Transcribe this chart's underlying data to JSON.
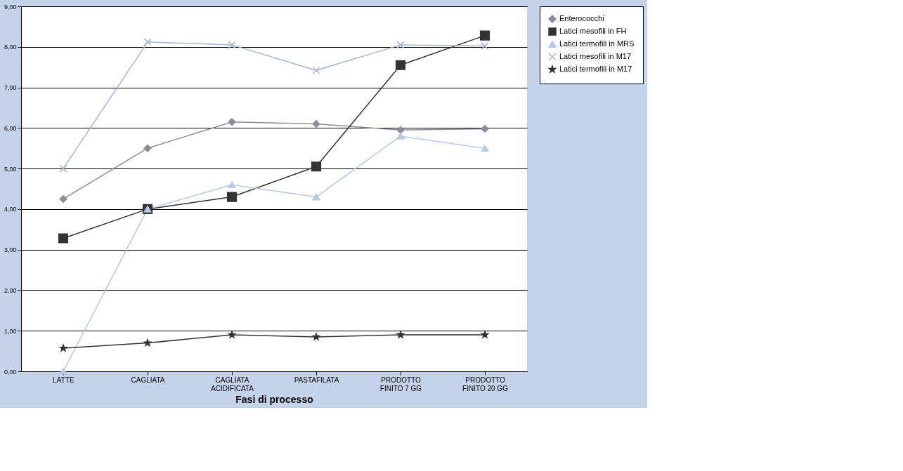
{
  "chart_data": {
    "type": "line",
    "xlabel": "Fasi di processo",
    "categories": [
      "LATTE",
      "CAGLIATA",
      "CAGLIATA\nACIDIFICATA",
      "PASTAFILATA",
      "PRODOTTO\nFINITO 7 GG",
      "PRODOTTO\nFINITO 20 GG"
    ],
    "ylim": [
      0,
      9
    ],
    "yticks": [
      {
        "value": 0,
        "label": "0,00"
      },
      {
        "value": 1,
        "label": "1,00"
      },
      {
        "value": 2,
        "label": "2,00"
      },
      {
        "value": 3,
        "label": "3,00"
      },
      {
        "value": 4,
        "label": "4,00"
      },
      {
        "value": 5,
        "label": "5,00"
      },
      {
        "value": 6,
        "label": "6,00"
      },
      {
        "value": 7,
        "label": "7,00"
      },
      {
        "value": 8,
        "label": "8,00"
      },
      {
        "value": 9,
        "label": "9,00"
      }
    ],
    "grid": "y",
    "legend": "right",
    "line_style": "solid",
    "series": [
      {
        "name": "Enterococchi",
        "color": "#8c8c9c",
        "marker": "diamond",
        "values": [
          4.25,
          5.5,
          6.15,
          6.1,
          5.95,
          5.98
        ]
      },
      {
        "name": "Latici mesofili in FH",
        "color": "#333333",
        "marker": "square",
        "values": [
          3.28,
          4.0,
          4.3,
          5.05,
          7.55,
          8.28
        ]
      },
      {
        "name": "Latici termofili in MRS",
        "color": "#b8c8e8",
        "marker": "triangle",
        "values": [
          0,
          4.0,
          4.6,
          4.3,
          5.8,
          5.5
        ]
      },
      {
        "name": "Latici mesofili in M17",
        "color": "#a8b4d0",
        "marker": "cross",
        "values": [
          5.0,
          8.12,
          8.05,
          7.42,
          8.05,
          8.02
        ]
      },
      {
        "name": "Latici termofili in M17",
        "color": "#333333",
        "marker": "star",
        "values": [
          0.57,
          0.7,
          0.9,
          0.85,
          0.9,
          0.9
        ]
      }
    ]
  }
}
